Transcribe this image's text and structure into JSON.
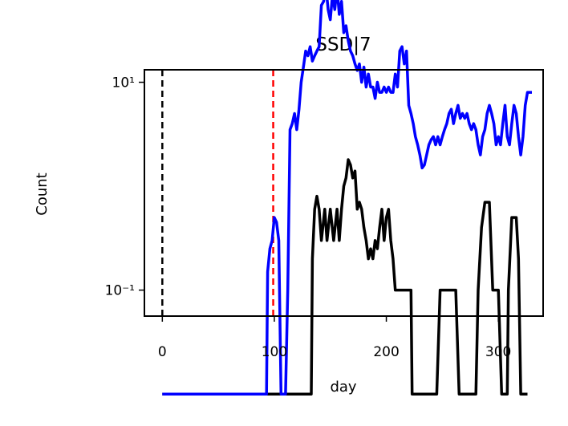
{
  "chart_data": {
    "type": "line",
    "title": "SSD|7",
    "xlabel": "day",
    "ylabel": "Count",
    "xlim": [
      -16,
      340
    ],
    "ylim_log10": [
      -1.25,
      1.12
    ],
    "yscale": "log",
    "grid": false,
    "x_ticks": [
      {
        "value": 0,
        "label": "0"
      },
      {
        "value": 100,
        "label": "100"
      },
      {
        "value": 200,
        "label": "200"
      },
      {
        "value": 300,
        "label": "300"
      }
    ],
    "y_ticks": [
      {
        "value": 0.1,
        "label": "10⁻¹"
      },
      {
        "value": 10,
        "label": "10¹"
      }
    ],
    "vlines": [
      {
        "x": 0,
        "color": "#000000",
        "style": "dashed"
      },
      {
        "x": 99,
        "color": "#ff0000",
        "style": "dashed"
      }
    ],
    "series": [
      {
        "color": "#000000",
        "points": [
          [
            0,
            0.01
          ],
          [
            100,
            0.01
          ],
          [
            120,
            0.01
          ],
          [
            133,
            0.01
          ],
          [
            134,
            0.2
          ],
          [
            136,
            0.6
          ],
          [
            138,
            0.8
          ],
          [
            140,
            0.6
          ],
          [
            142,
            0.3
          ],
          [
            145,
            0.6
          ],
          [
            147,
            0.3
          ],
          [
            150,
            0.6
          ],
          [
            153,
            0.3
          ],
          [
            156,
            0.6
          ],
          [
            158,
            0.3
          ],
          [
            160,
            0.6
          ],
          [
            162,
            1.0
          ],
          [
            164,
            1.2
          ],
          [
            166,
            1.8
          ],
          [
            168,
            1.6
          ],
          [
            170,
            1.2
          ],
          [
            172,
            1.4
          ],
          [
            174,
            0.6
          ],
          [
            176,
            0.7
          ],
          [
            178,
            0.6
          ],
          [
            180,
            0.4
          ],
          [
            182,
            0.3
          ],
          [
            184,
            0.2
          ],
          [
            186,
            0.25
          ],
          [
            188,
            0.2
          ],
          [
            190,
            0.3
          ],
          [
            192,
            0.25
          ],
          [
            194,
            0.4
          ],
          [
            196,
            0.6
          ],
          [
            198,
            0.3
          ],
          [
            200,
            0.5
          ],
          [
            202,
            0.6
          ],
          [
            204,
            0.3
          ],
          [
            206,
            0.2
          ],
          [
            208,
            0.1
          ],
          [
            222,
            0.1
          ],
          [
            223,
            0.01
          ],
          [
            245,
            0.01
          ],
          [
            248,
            0.1
          ],
          [
            262,
            0.1
          ],
          [
            265,
            0.01
          ],
          [
            280,
            0.01
          ],
          [
            282,
            0.1
          ],
          [
            285,
            0.4
          ],
          [
            288,
            0.7
          ],
          [
            292,
            0.7
          ],
          [
            295,
            0.1
          ],
          [
            300,
            0.1
          ],
          [
            303,
            0.01
          ],
          [
            308,
            0.01
          ],
          [
            309,
            0.1
          ],
          [
            312,
            0.5
          ],
          [
            316,
            0.5
          ],
          [
            318,
            0.2
          ],
          [
            320,
            0.01
          ],
          [
            326,
            0.01
          ]
        ]
      },
      {
        "color": "#0000ff",
        "points": [
          [
            0,
            0.01
          ],
          [
            93,
            0.01
          ],
          [
            94,
            0.15
          ],
          [
            96,
            0.25
          ],
          [
            98,
            0.3
          ],
          [
            100,
            0.5
          ],
          [
            102,
            0.45
          ],
          [
            104,
            0.3
          ],
          [
            106,
            0.01
          ],
          [
            108,
            0.01
          ],
          [
            110,
            0.01
          ],
          [
            112,
            0.1
          ],
          [
            114,
            3.5
          ],
          [
            116,
            4
          ],
          [
            118,
            5
          ],
          [
            120,
            3.5
          ],
          [
            122,
            5.5
          ],
          [
            124,
            10
          ],
          [
            126,
            14
          ],
          [
            128,
            20
          ],
          [
            130,
            18
          ],
          [
            132,
            22
          ],
          [
            134,
            16
          ],
          [
            136,
            18
          ],
          [
            138,
            20
          ],
          [
            140,
            22
          ],
          [
            142,
            55
          ],
          [
            144,
            60
          ],
          [
            146,
            85
          ],
          [
            148,
            50
          ],
          [
            150,
            40
          ],
          [
            152,
            70
          ],
          [
            154,
            50
          ],
          [
            156,
            80
          ],
          [
            158,
            45
          ],
          [
            160,
            60
          ],
          [
            162,
            30
          ],
          [
            164,
            35
          ],
          [
            166,
            25
          ],
          [
            168,
            20
          ],
          [
            170,
            18
          ],
          [
            172,
            15
          ],
          [
            174,
            13
          ],
          [
            176,
            15
          ],
          [
            178,
            10
          ],
          [
            180,
            14
          ],
          [
            182,
            9
          ],
          [
            184,
            12
          ],
          [
            186,
            9
          ],
          [
            188,
            9
          ],
          [
            190,
            7
          ],
          [
            192,
            10
          ],
          [
            194,
            8
          ],
          [
            196,
            8
          ],
          [
            198,
            9
          ],
          [
            200,
            8
          ],
          [
            202,
            9
          ],
          [
            204,
            8
          ],
          [
            206,
            8
          ],
          [
            208,
            12
          ],
          [
            210,
            9
          ],
          [
            212,
            20
          ],
          [
            214,
            22
          ],
          [
            216,
            15
          ],
          [
            218,
            20
          ],
          [
            220,
            6
          ],
          [
            222,
            5
          ],
          [
            224,
            4
          ],
          [
            226,
            3
          ],
          [
            228,
            2.5
          ],
          [
            230,
            2
          ],
          [
            232,
            1.5
          ],
          [
            234,
            1.6
          ],
          [
            236,
            2
          ],
          [
            238,
            2.5
          ],
          [
            240,
            2.8
          ],
          [
            242,
            3
          ],
          [
            244,
            2.5
          ],
          [
            246,
            3
          ],
          [
            248,
            2.5
          ],
          [
            250,
            3
          ],
          [
            252,
            3.5
          ],
          [
            254,
            4
          ],
          [
            256,
            5
          ],
          [
            258,
            5.5
          ],
          [
            260,
            4
          ],
          [
            262,
            5
          ],
          [
            264,
            6
          ],
          [
            266,
            4.5
          ],
          [
            268,
            5
          ],
          [
            270,
            4.5
          ],
          [
            272,
            5
          ],
          [
            274,
            4
          ],
          [
            276,
            3.5
          ],
          [
            278,
            4
          ],
          [
            280,
            3.5
          ],
          [
            282,
            2.5
          ],
          [
            284,
            2
          ],
          [
            286,
            3
          ],
          [
            288,
            3.5
          ],
          [
            290,
            5
          ],
          [
            292,
            6
          ],
          [
            294,
            5
          ],
          [
            296,
            4
          ],
          [
            298,
            2.5
          ],
          [
            300,
            3
          ],
          [
            302,
            2.5
          ],
          [
            304,
            4
          ],
          [
            306,
            6
          ],
          [
            308,
            3
          ],
          [
            310,
            2.5
          ],
          [
            312,
            4
          ],
          [
            314,
            6
          ],
          [
            316,
            5
          ],
          [
            318,
            3
          ],
          [
            320,
            2
          ],
          [
            322,
            3
          ],
          [
            324,
            6
          ],
          [
            326,
            8
          ],
          [
            330,
            8
          ]
        ]
      }
    ]
  }
}
